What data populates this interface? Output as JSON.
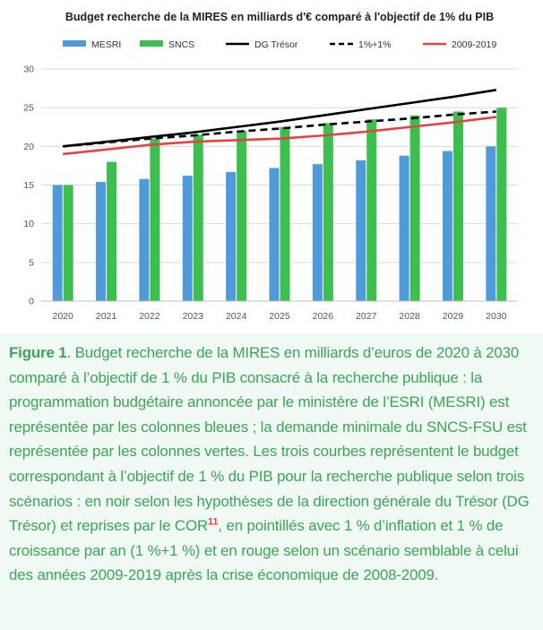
{
  "chart_data": {
    "type": "bar",
    "title": "Budget recherche de la MIRES en milliards d'€ comparé à l'objectif de 1% du PIB",
    "xlabel": "",
    "ylabel": "",
    "categories": [
      "2020",
      "2021",
      "2022",
      "2023",
      "2024",
      "2025",
      "2026",
      "2027",
      "2028",
      "2029",
      "2030"
    ],
    "ylim": [
      0,
      30
    ],
    "yticks": [
      0,
      5,
      10,
      15,
      20,
      25,
      30
    ],
    "grid": true,
    "legend_position": "top",
    "series": [
      {
        "name": "MESRI",
        "kind": "bar",
        "color": "#4f9bd9",
        "values": [
          15.0,
          15.4,
          15.8,
          16.2,
          16.7,
          17.2,
          17.7,
          18.2,
          18.8,
          19.4,
          20.0
        ]
      },
      {
        "name": "SNCS",
        "kind": "bar",
        "color": "#3cbf4f",
        "values": [
          15.0,
          18.0,
          21.0,
          21.5,
          22.0,
          22.5,
          23.0,
          23.5,
          24.0,
          24.5,
          25.0
        ]
      },
      {
        "name": "DG Trésor",
        "kind": "line",
        "style": "solid",
        "color": "#000000",
        "values": [
          20.0,
          20.6,
          21.2,
          21.8,
          22.5,
          23.2,
          24.0,
          24.8,
          25.6,
          26.4,
          27.3
        ]
      },
      {
        "name": "1%+1%",
        "kind": "line",
        "style": "dashed",
        "color": "#000000",
        "values": [
          20.0,
          20.5,
          21.0,
          21.4,
          21.9,
          22.3,
          22.8,
          23.2,
          23.6,
          24.1,
          24.5
        ]
      },
      {
        "name": "2009-2019",
        "kind": "line",
        "style": "solid",
        "color": "#e8423f",
        "values": [
          19.0,
          19.6,
          20.2,
          20.6,
          20.8,
          21.0,
          21.4,
          21.9,
          22.5,
          23.1,
          23.8
        ]
      }
    ]
  },
  "caption": {
    "figure_label": "Figure 1",
    "text": ". Budget recherche de la MIRES en milliards d’euros de 2020 à 2030 comparé à l’objectif de 1 % du PIB consacré à la recherche publique : la programmation budgétaire annoncée par le ministère de l’ESRI (MESRI) est représentée par les colonnes bleues ; la demande minimale du SNCS-FSU est représentée par les colonnes vertes. Les trois courbes représentent le budget correspondant à l’objectif de 1 % du PIB pour la recherche publique selon trois scénarios : en noir selon les hypothèses de la direction générale du Trésor (DG Trésor) et reprises par le COR",
    "ref": "11",
    "text_after": ", en pointillés avec 1 % d’inflation et 1 % de croissance par an (1 %+1 %) et en rouge selon un scénario semblable à celui des années 2009-2019 après la crise économique de 2008-2009."
  }
}
